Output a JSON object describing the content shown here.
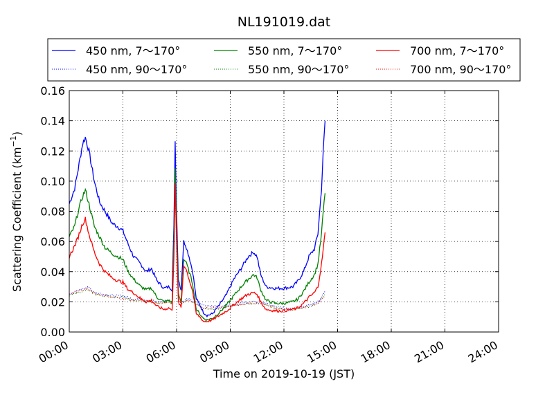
{
  "chart_data": {
    "type": "line",
    "title": "NL191019.dat",
    "xlabel": "Time on 2019-10-19 (JST)",
    "ylabel": "Scattering Coefficient (km",
    "ylabel_superscript": "−1",
    "ylabel_close": ")",
    "x_ticks": [
      "00:00",
      "03:00",
      "06:00",
      "09:00",
      "12:00",
      "15:00",
      "18:00",
      "21:00",
      "24:00"
    ],
    "y_ticks": [
      "0.00",
      "0.02",
      "0.04",
      "0.06",
      "0.08",
      "0.10",
      "0.12",
      "0.14",
      "0.16"
    ],
    "xlim_hours": [
      0,
      24
    ],
    "ylim": [
      0,
      0.16
    ],
    "grid": true,
    "legend_position": "top, outside plot area",
    "colors": {
      "450": "#0000ff",
      "550": "#008000",
      "700": "#ff0000"
    },
    "series": [
      {
        "name": "450 nm, 7～170°",
        "color": "#0000ff",
        "style": "solid",
        "points": [
          [
            0,
            0.085
          ],
          [
            0.3,
            0.095
          ],
          [
            0.5,
            0.108
          ],
          [
            0.75,
            0.125
          ],
          [
            0.9,
            0.129
          ],
          [
            1.1,
            0.12
          ],
          [
            1.4,
            0.1
          ],
          [
            1.7,
            0.086
          ],
          [
            2.0,
            0.08
          ],
          [
            2.4,
            0.072
          ],
          [
            2.7,
            0.07
          ],
          [
            3.0,
            0.067
          ],
          [
            3.3,
            0.058
          ],
          [
            3.6,
            0.05
          ],
          [
            4.0,
            0.045
          ],
          [
            4.3,
            0.04
          ],
          [
            4.6,
            0.042
          ],
          [
            4.9,
            0.034
          ],
          [
            5.3,
            0.029
          ],
          [
            5.6,
            0.03
          ],
          [
            5.75,
            0.028
          ],
          [
            5.85,
            0.07
          ],
          [
            5.92,
            0.125
          ],
          [
            6.0,
            0.08
          ],
          [
            6.1,
            0.035
          ],
          [
            6.25,
            0.028
          ],
          [
            6.4,
            0.06
          ],
          [
            6.5,
            0.058
          ],
          [
            6.7,
            0.05
          ],
          [
            6.9,
            0.04
          ],
          [
            7.1,
            0.022
          ],
          [
            7.3,
            0.018
          ],
          [
            7.5,
            0.013
          ],
          [
            7.7,
            0.011
          ],
          [
            8.0,
            0.012
          ],
          [
            8.4,
            0.018
          ],
          [
            8.8,
            0.025
          ],
          [
            9.2,
            0.035
          ],
          [
            9.6,
            0.042
          ],
          [
            10.0,
            0.05
          ],
          [
            10.3,
            0.053
          ],
          [
            10.5,
            0.05
          ],
          [
            10.7,
            0.038
          ],
          [
            11.0,
            0.03
          ],
          [
            11.5,
            0.029
          ],
          [
            12.0,
            0.029
          ],
          [
            12.5,
            0.03
          ],
          [
            12.8,
            0.034
          ],
          [
            13.1,
            0.04
          ],
          [
            13.4,
            0.05
          ],
          [
            13.7,
            0.055
          ],
          [
            13.9,
            0.065
          ],
          [
            14.1,
            0.095
          ],
          [
            14.2,
            0.12
          ],
          [
            14.3,
            0.14
          ]
        ]
      },
      {
        "name": "450 nm, 90～170°",
        "color": "#0000ff",
        "style": "dotted",
        "points": [
          [
            0,
            0.025
          ],
          [
            0.4,
            0.027
          ],
          [
            0.8,
            0.029
          ],
          [
            1.0,
            0.03
          ],
          [
            1.5,
            0.026
          ],
          [
            2.0,
            0.025
          ],
          [
            2.5,
            0.024
          ],
          [
            3.0,
            0.024
          ],
          [
            3.5,
            0.022
          ],
          [
            4.0,
            0.022
          ],
          [
            4.5,
            0.021
          ],
          [
            5.0,
            0.02
          ],
          [
            5.5,
            0.021
          ],
          [
            5.75,
            0.02
          ],
          [
            5.85,
            0.06
          ],
          [
            5.92,
            0.1
          ],
          [
            6.0,
            0.06
          ],
          [
            6.1,
            0.022
          ],
          [
            6.3,
            0.02
          ],
          [
            6.6,
            0.022
          ],
          [
            7.0,
            0.02
          ],
          [
            7.5,
            0.018
          ],
          [
            8.0,
            0.017
          ],
          [
            8.5,
            0.017
          ],
          [
            9.0,
            0.018
          ],
          [
            9.5,
            0.019
          ],
          [
            10.0,
            0.02
          ],
          [
            10.5,
            0.02
          ],
          [
            11.0,
            0.019
          ],
          [
            11.5,
            0.017
          ],
          [
            12.0,
            0.016
          ],
          [
            12.5,
            0.016
          ],
          [
            13.0,
            0.017
          ],
          [
            13.5,
            0.018
          ],
          [
            14.0,
            0.021
          ],
          [
            14.3,
            0.027
          ]
        ]
      },
      {
        "name": "550 nm, 7～170°",
        "color": "#008000",
        "style": "solid",
        "points": [
          [
            0,
            0.063
          ],
          [
            0.3,
            0.07
          ],
          [
            0.5,
            0.08
          ],
          [
            0.75,
            0.09
          ],
          [
            0.9,
            0.094
          ],
          [
            1.1,
            0.085
          ],
          [
            1.4,
            0.07
          ],
          [
            1.7,
            0.063
          ],
          [
            2.0,
            0.056
          ],
          [
            2.4,
            0.052
          ],
          [
            2.7,
            0.05
          ],
          [
            3.0,
            0.048
          ],
          [
            3.3,
            0.04
          ],
          [
            3.6,
            0.035
          ],
          [
            4.0,
            0.03
          ],
          [
            4.3,
            0.028
          ],
          [
            4.6,
            0.029
          ],
          [
            4.9,
            0.023
          ],
          [
            5.3,
            0.02
          ],
          [
            5.6,
            0.021
          ],
          [
            5.75,
            0.019
          ],
          [
            5.85,
            0.06
          ],
          [
            5.92,
            0.11
          ],
          [
            6.0,
            0.07
          ],
          [
            6.1,
            0.025
          ],
          [
            6.25,
            0.02
          ],
          [
            6.4,
            0.048
          ],
          [
            6.5,
            0.047
          ],
          [
            6.7,
            0.04
          ],
          [
            6.9,
            0.032
          ],
          [
            7.1,
            0.015
          ],
          [
            7.3,
            0.012
          ],
          [
            7.5,
            0.009
          ],
          [
            7.7,
            0.008
          ],
          [
            8.0,
            0.009
          ],
          [
            8.4,
            0.013
          ],
          [
            8.8,
            0.018
          ],
          [
            9.2,
            0.024
          ],
          [
            9.6,
            0.03
          ],
          [
            10.0,
            0.035
          ],
          [
            10.3,
            0.038
          ],
          [
            10.5,
            0.036
          ],
          [
            10.7,
            0.028
          ],
          [
            11.0,
            0.021
          ],
          [
            11.5,
            0.019
          ],
          [
            12.0,
            0.019
          ],
          [
            12.5,
            0.02
          ],
          [
            12.8,
            0.022
          ],
          [
            13.1,
            0.027
          ],
          [
            13.4,
            0.033
          ],
          [
            13.7,
            0.038
          ],
          [
            13.9,
            0.045
          ],
          [
            14.1,
            0.065
          ],
          [
            14.2,
            0.08
          ],
          [
            14.3,
            0.092
          ]
        ]
      },
      {
        "name": "550 nm, 90～170°",
        "color": "#008000",
        "style": "dotted",
        "points": [
          [
            0,
            0.024
          ],
          [
            0.4,
            0.026
          ],
          [
            0.8,
            0.027
          ],
          [
            1.0,
            0.028
          ],
          [
            1.5,
            0.025
          ],
          [
            2.0,
            0.024
          ],
          [
            2.5,
            0.023
          ],
          [
            3.0,
            0.023
          ],
          [
            3.5,
            0.021
          ],
          [
            4.0,
            0.021
          ],
          [
            4.5,
            0.02
          ],
          [
            5.0,
            0.019
          ],
          [
            5.5,
            0.02
          ],
          [
            5.75,
            0.019
          ],
          [
            5.85,
            0.055
          ],
          [
            5.92,
            0.095
          ],
          [
            6.0,
            0.055
          ],
          [
            6.1,
            0.021
          ],
          [
            6.3,
            0.019
          ],
          [
            6.6,
            0.021
          ],
          [
            7.0,
            0.019
          ],
          [
            7.5,
            0.016
          ],
          [
            8.0,
            0.015
          ],
          [
            8.5,
            0.016
          ],
          [
            9.0,
            0.017
          ],
          [
            9.5,
            0.018
          ],
          [
            10.0,
            0.019
          ],
          [
            10.5,
            0.019
          ],
          [
            11.0,
            0.018
          ],
          [
            11.5,
            0.016
          ],
          [
            12.0,
            0.015
          ],
          [
            12.5,
            0.015
          ],
          [
            13.0,
            0.016
          ],
          [
            13.5,
            0.017
          ],
          [
            14.0,
            0.02
          ],
          [
            14.3,
            0.025
          ]
        ]
      },
      {
        "name": "700 nm, 7～170°",
        "color": "#ff0000",
        "style": "solid",
        "points": [
          [
            0,
            0.05
          ],
          [
            0.3,
            0.057
          ],
          [
            0.5,
            0.063
          ],
          [
            0.75,
            0.072
          ],
          [
            0.9,
            0.075
          ],
          [
            1.1,
            0.065
          ],
          [
            1.4,
            0.053
          ],
          [
            1.7,
            0.045
          ],
          [
            2.0,
            0.04
          ],
          [
            2.4,
            0.036
          ],
          [
            2.7,
            0.034
          ],
          [
            3.0,
            0.033
          ],
          [
            3.3,
            0.028
          ],
          [
            3.6,
            0.026
          ],
          [
            4.0,
            0.022
          ],
          [
            4.3,
            0.02
          ],
          [
            4.6,
            0.021
          ],
          [
            4.9,
            0.017
          ],
          [
            5.3,
            0.015
          ],
          [
            5.6,
            0.016
          ],
          [
            5.75,
            0.014
          ],
          [
            5.85,
            0.05
          ],
          [
            5.92,
            0.1
          ],
          [
            6.0,
            0.06
          ],
          [
            6.1,
            0.02
          ],
          [
            6.25,
            0.016
          ],
          [
            6.4,
            0.044
          ],
          [
            6.5,
            0.043
          ],
          [
            6.7,
            0.035
          ],
          [
            6.9,
            0.027
          ],
          [
            7.1,
            0.012
          ],
          [
            7.3,
            0.01
          ],
          [
            7.5,
            0.007
          ],
          [
            7.7,
            0.007
          ],
          [
            8.0,
            0.008
          ],
          [
            8.4,
            0.011
          ],
          [
            8.8,
            0.014
          ],
          [
            9.2,
            0.018
          ],
          [
            9.6,
            0.022
          ],
          [
            10.0,
            0.025
          ],
          [
            10.3,
            0.026
          ],
          [
            10.5,
            0.025
          ],
          [
            10.7,
            0.02
          ],
          [
            11.0,
            0.015
          ],
          [
            11.5,
            0.014
          ],
          [
            12.0,
            0.014
          ],
          [
            12.5,
            0.015
          ],
          [
            12.8,
            0.016
          ],
          [
            13.1,
            0.019
          ],
          [
            13.4,
            0.023
          ],
          [
            13.7,
            0.026
          ],
          [
            13.9,
            0.03
          ],
          [
            14.1,
            0.045
          ],
          [
            14.2,
            0.055
          ],
          [
            14.3,
            0.066
          ]
        ]
      },
      {
        "name": "700 nm, 90～170°",
        "color": "#ff0000",
        "style": "dotted",
        "points": [
          [
            0,
            0.025
          ],
          [
            0.4,
            0.027
          ],
          [
            0.8,
            0.028
          ],
          [
            1.0,
            0.029
          ],
          [
            1.5,
            0.025
          ],
          [
            2.0,
            0.024
          ],
          [
            2.5,
            0.023
          ],
          [
            3.0,
            0.022
          ],
          [
            3.5,
            0.021
          ],
          [
            4.0,
            0.021
          ],
          [
            4.5,
            0.02
          ],
          [
            5.0,
            0.019
          ],
          [
            5.5,
            0.02
          ],
          [
            5.75,
            0.019
          ],
          [
            5.85,
            0.055
          ],
          [
            5.92,
            0.095
          ],
          [
            6.0,
            0.055
          ],
          [
            6.1,
            0.021
          ],
          [
            6.3,
            0.019
          ],
          [
            6.6,
            0.021
          ],
          [
            7.0,
            0.019
          ],
          [
            7.5,
            0.016
          ],
          [
            8.0,
            0.016
          ],
          [
            8.5,
            0.016
          ],
          [
            9.0,
            0.017
          ],
          [
            9.5,
            0.018
          ],
          [
            10.0,
            0.019
          ],
          [
            10.5,
            0.019
          ],
          [
            11.0,
            0.018
          ],
          [
            11.5,
            0.016
          ],
          [
            12.0,
            0.015
          ],
          [
            12.5,
            0.015
          ],
          [
            13.0,
            0.016
          ],
          [
            13.5,
            0.017
          ],
          [
            14.0,
            0.02
          ],
          [
            14.3,
            0.024
          ]
        ]
      }
    ]
  }
}
